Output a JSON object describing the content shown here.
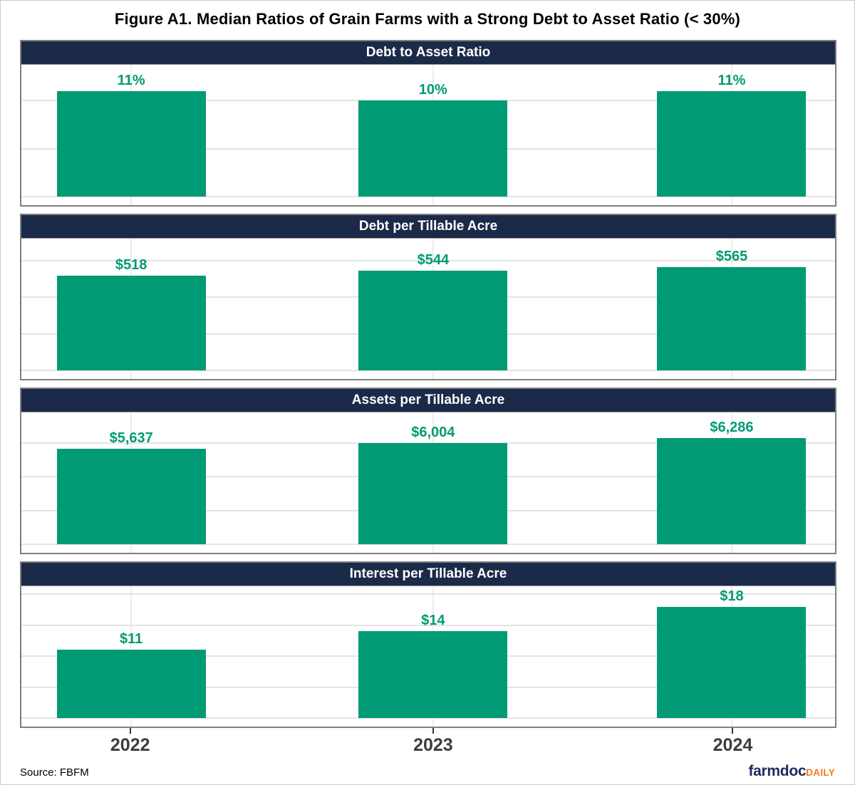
{
  "title": "Figure A1. Median Ratios of Grain Farms with a Strong Debt to Asset Ratio (< 30%)",
  "source_label": "Source: FBFM",
  "logo": {
    "farmdoc": "farmdoc",
    "daily": "DAILY"
  },
  "colors": {
    "bar": "#009B74",
    "value_label": "#009B74",
    "header_bg": "#1B2A49",
    "header_text": "#FFFFFF",
    "grid": "#E4E4E4",
    "vgrid": "#EDEDED",
    "panel_border": "#7F7F7F",
    "axis_text": "#3D3D3D",
    "logo_navy": "#1E2A5C",
    "logo_orange": "#F4791F"
  },
  "x_axis": {
    "categories": [
      "2022",
      "2023",
      "2024"
    ]
  },
  "chart_data": [
    {
      "type": "bar",
      "title": "Debt to Asset Ratio",
      "categories": [
        "2022",
        "2023",
        "2024"
      ],
      "values": [
        11,
        10,
        11
      ],
      "labels": [
        "11%",
        "10%",
        "11%"
      ],
      "ylabel": "",
      "ylim": [
        0,
        13.75
      ],
      "grid_step": 5,
      "grid": "on",
      "legend": "none"
    },
    {
      "type": "bar",
      "title": "Debt per Tillable Acre",
      "categories": [
        "2022",
        "2023",
        "2024"
      ],
      "values": [
        518,
        544,
        565
      ],
      "labels": [
        "$518",
        "$544",
        "$565"
      ],
      "ylabel": "",
      "ylim": [
        0,
        720
      ],
      "grid_step": 200,
      "grid": "on",
      "legend": "none"
    },
    {
      "type": "bar",
      "title": "Assets per Tillable Acre",
      "categories": [
        "2022",
        "2023",
        "2024"
      ],
      "values": [
        5637,
        6004,
        6286
      ],
      "labels": [
        "$5,637",
        "$6,004",
        "$6,286"
      ],
      "ylabel": "",
      "ylim": [
        0,
        7800
      ],
      "grid_step": 2000,
      "grid": "on",
      "legend": "none"
    },
    {
      "type": "bar",
      "title": "Interest per Tillable Acre",
      "categories": [
        "2022",
        "2023",
        "2024"
      ],
      "values": [
        11,
        14,
        18
      ],
      "labels": [
        "$11",
        "$14",
        "$18"
      ],
      "ylabel": "",
      "ylim": [
        0,
        21.3
      ],
      "grid_step": 5,
      "grid": "on",
      "legend": "none"
    }
  ]
}
